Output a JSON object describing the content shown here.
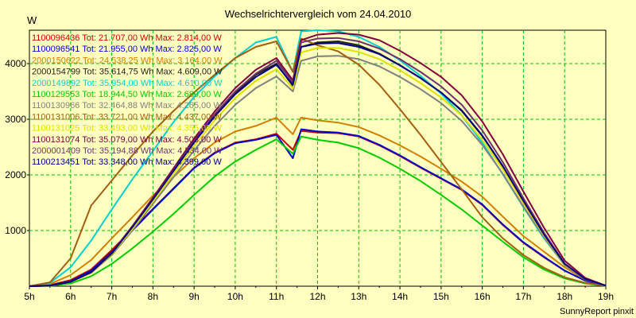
{
  "chart_data": {
    "type": "line",
    "title": "Wechselrichtervergleich vom 24.04.2010",
    "ylabel": "W",
    "xlabel": "",
    "x_tick_labels": [
      "5h",
      "6h",
      "7h",
      "8h",
      "9h",
      "10h",
      "11h",
      "12h",
      "13h",
      "14h",
      "15h",
      "16h",
      "17h",
      "18h",
      "19h"
    ],
    "y_ticks": [
      1000,
      2000,
      3000,
      4000
    ],
    "xlim": [
      5,
      19
    ],
    "ylim": [
      0,
      4600
    ],
    "grid": true,
    "legend_position": "top-left",
    "footer": "SunnyReport pinxit",
    "x": [
      5.0,
      5.5,
      6.0,
      6.5,
      7.0,
      7.5,
      8.0,
      8.5,
      9.0,
      9.5,
      10.0,
      10.5,
      11.0,
      11.4,
      11.6,
      12.0,
      12.5,
      13.0,
      13.5,
      14.0,
      14.5,
      15.0,
      15.5,
      16.0,
      16.5,
      17.0,
      17.5,
      18.0,
      18.5,
      19.0
    ],
    "series": [
      {
        "name": "1100096436 Tot: 21.707,00 Wh Max: 2.814,00 W",
        "color": "#cc0000",
        "values": [
          0,
          20,
          110,
          300,
          650,
          1020,
          1390,
          1760,
          2130,
          2400,
          2580,
          2640,
          2740,
          2450,
          2790,
          2760,
          2750,
          2690,
          2530,
          2340,
          2130,
          1930,
          1730,
          1460,
          1100,
          780,
          520,
          280,
          100,
          10
        ]
      },
      {
        "name": "1100096541 Tot: 21.955,00 Wh Max: 2.825,00 W",
        "color": "#0000cc",
        "values": [
          0,
          15,
          90,
          280,
          620,
          1000,
          1380,
          1750,
          2120,
          2390,
          2570,
          2630,
          2720,
          2300,
          2820,
          2780,
          2760,
          2700,
          2540,
          2350,
          2140,
          1940,
          1740,
          1470,
          1110,
          790,
          530,
          280,
          100,
          10
        ]
      },
      {
        "name": "2000150622 Tot: 24.538,25 Wh Max: 3.164,00 W",
        "color": "#d08000",
        "values": [
          0,
          40,
          200,
          470,
          860,
          1240,
          1630,
          1960,
          2300,
          2580,
          2780,
          2880,
          3030,
          2730,
          3030,
          2980,
          2940,
          2860,
          2710,
          2530,
          2330,
          2110,
          1880,
          1610,
          1250,
          900,
          620,
          340,
          120,
          10
        ]
      },
      {
        "name": "2000154799 Tot: 35.614,75 Wh Max: 4.609,00 W",
        "color": "#202020",
        "values": [
          0,
          10,
          80,
          240,
          580,
          1050,
          1560,
          2080,
          2600,
          3080,
          3480,
          3800,
          4000,
          3600,
          4300,
          4380,
          4400,
          4330,
          4180,
          3970,
          3740,
          3480,
          3150,
          2700,
          2150,
          1520,
          930,
          400,
          130,
          10
        ]
      },
      {
        "name": "2000149892 Tot: 35.954,00 Wh Max: 4.610,00 W",
        "color": "#00d0d0",
        "values": [
          0,
          60,
          340,
          820,
          1380,
          1920,
          2430,
          2950,
          3400,
          3770,
          4100,
          4380,
          4480,
          3850,
          4580,
          4600,
          4580,
          4480,
          4300,
          4060,
          3780,
          3460,
          3070,
          2580,
          2010,
          1420,
          860,
          380,
          130,
          10
        ]
      },
      {
        "name": "1100129553 Tot: 18.944,50 Wh Max: 2.689,00 W",
        "color": "#00cc00",
        "values": [
          0,
          5,
          50,
          180,
          400,
          680,
          980,
          1300,
          1640,
          1970,
          2240,
          2450,
          2640,
          2380,
          2690,
          2630,
          2580,
          2480,
          2310,
          2110,
          1890,
          1640,
          1380,
          1090,
          800,
          520,
          300,
          140,
          50,
          5
        ]
      },
      {
        "name": "1100130966 Tot: 32.464,88 Wh Max: 4.265,00 W",
        "color": "#808080",
        "values": [
          0,
          10,
          80,
          240,
          560,
          1000,
          1480,
          1960,
          2440,
          2880,
          3260,
          3560,
          3770,
          3500,
          4050,
          4130,
          4140,
          4080,
          3950,
          3760,
          3540,
          3290,
          2970,
          2540,
          2020,
          1430,
          880,
          380,
          120,
          10
        ]
      },
      {
        "name": "1100131006 Tot: 33.721,00 Wh Max: 4.437,00 W",
        "color": "#a06010",
        "values": [
          0,
          70,
          500,
          1450,
          1900,
          2350,
          2780,
          3150,
          3480,
          3800,
          4100,
          4300,
          4400,
          3850,
          4450,
          4330,
          4220,
          3980,
          3620,
          3180,
          2720,
          2230,
          1740,
          1240,
          860,
          560,
          330,
          160,
          60,
          5
        ]
      },
      {
        "name": "1100131025 Tot: 33.493,00 Wh Max: 4.355,00 W",
        "color": "#e0e000",
        "values": [
          0,
          10,
          80,
          240,
          580,
          1030,
          1520,
          2020,
          2520,
          2980,
          3380,
          3690,
          3900,
          3550,
          4200,
          4280,
          4280,
          4210,
          4080,
          3880,
          3650,
          3390,
          3070,
          2630,
          2100,
          1490,
          910,
          390,
          130,
          10
        ]
      },
      {
        "name": "1100131074 Tot: 35.079,00 Wh Max: 4.503,00 W",
        "color": "#800040",
        "values": [
          0,
          10,
          80,
          250,
          600,
          1080,
          1590,
          2120,
          2650,
          3140,
          3560,
          3890,
          4100,
          3700,
          4420,
          4520,
          4550,
          4520,
          4420,
          4230,
          4010,
          3760,
          3430,
          2960,
          2370,
          1700,
          1050,
          460,
          150,
          10
        ]
      },
      {
        "name": "2000001409 Tot: 35.194,88 Wh Max: 4.534,00 W",
        "color": "#703070",
        "values": [
          0,
          10,
          80,
          250,
          590,
          1070,
          1570,
          2090,
          2610,
          3090,
          3500,
          3820,
          4050,
          3660,
          4380,
          4450,
          4460,
          4400,
          4270,
          4080,
          3850,
          3590,
          3260,
          2800,
          2230,
          1580,
          960,
          410,
          130,
          10
        ]
      },
      {
        "name": "1100213451 Tot: 33.348,00 Wh Max: 4.399,00 W",
        "color": "#000080",
        "values": [
          0,
          10,
          80,
          250,
          590,
          1060,
          1560,
          2070,
          2580,
          3050,
          3450,
          3760,
          3980,
          3620,
          4300,
          4360,
          4370,
          4300,
          4170,
          3970,
          3740,
          3480,
          3160,
          2710,
          2160,
          1530,
          930,
          400,
          130,
          10
        ]
      }
    ]
  }
}
